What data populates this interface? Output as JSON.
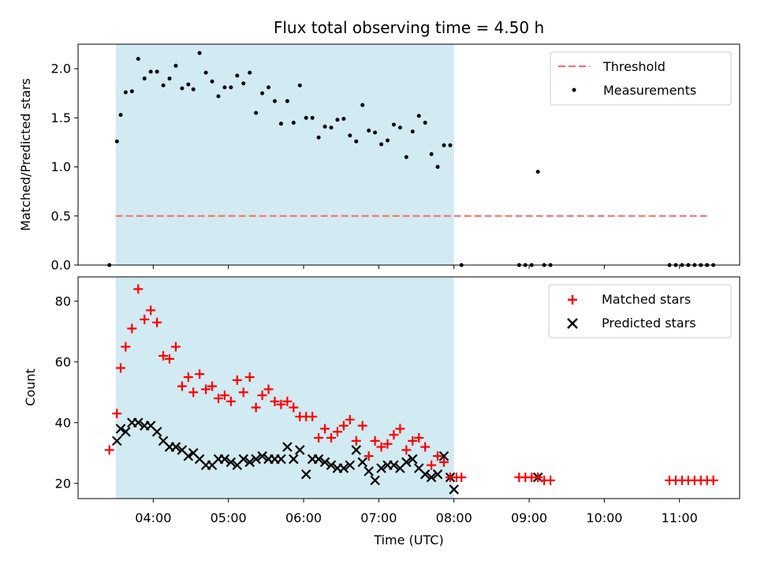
{
  "title": "Flux total observing time = 4.50 h",
  "top": {
    "ylabel": "Matched/Predicted stars",
    "ylim": [
      0,
      2.25
    ],
    "yticks": [
      "0.0",
      "0.5",
      "1.0",
      "1.5",
      "2.0"
    ],
    "legend": {
      "threshold": "Threshold",
      "measurements": "Measurements"
    },
    "threshold_value": 0.5,
    "threshold_range": [
      "03:30",
      "11:23"
    ]
  },
  "bottom": {
    "ylabel": "Count",
    "ylim": [
      15,
      88
    ],
    "yticks": [
      "20",
      "40",
      "60",
      "80"
    ],
    "legend": {
      "matched": "Matched stars",
      "predicted": "Predicted stars"
    }
  },
  "xaxis": {
    "xlabel": "Time (UTC)",
    "ticks": [
      "04:00",
      "05:00",
      "06:00",
      "07:00",
      "08:00",
      "09:00",
      "10:00",
      "11:00"
    ],
    "range": [
      "03:00",
      "11:48"
    ]
  },
  "shaded_span": [
    "03:30",
    "08:00"
  ],
  "colors": {
    "shade": "#add8e6",
    "threshold": "#ff6666",
    "matched": "#ff0000",
    "predicted": "#000000",
    "measurement": "#000000"
  },
  "chart_data": [
    {
      "type": "scatter",
      "title": "Flux total observing time = 4.50 h",
      "ylabel": "Matched/Predicted stars",
      "series": [
        {
          "name": "Measurements",
          "x": [
            "03:25",
            "03:31",
            "03:34",
            "03:38",
            "03:43",
            "03:48",
            "03:53",
            "03:58",
            "04:03",
            "04:08",
            "04:13",
            "04:18",
            "04:23",
            "04:28",
            "04:32",
            "04:37",
            "04:42",
            "04:47",
            "04:52",
            "04:57",
            "05:02",
            "05:07",
            "05:12",
            "05:17",
            "05:22",
            "05:27",
            "05:32",
            "05:37",
            "05:42",
            "05:47",
            "05:52",
            "05:57",
            "06:02",
            "06:07",
            "06:12",
            "06:17",
            "06:22",
            "06:27",
            "06:32",
            "06:37",
            "06:42",
            "06:47",
            "06:52",
            "06:57",
            "07:02",
            "07:07",
            "07:12",
            "07:17",
            "07:22",
            "07:27",
            "07:32",
            "07:37",
            "07:42",
            "07:47",
            "07:52",
            "07:57",
            "08:06",
            "08:52",
            "08:57",
            "09:02",
            "09:07",
            "09:12",
            "09:17",
            "10:52",
            "10:57",
            "11:02",
            "11:07",
            "11:12",
            "11:17",
            "11:22",
            "11:27"
          ],
          "y": [
            0.0,
            1.26,
            1.53,
            1.76,
            1.77,
            2.1,
            1.9,
            1.97,
            1.97,
            1.83,
            1.9,
            2.03,
            1.8,
            1.84,
            1.79,
            2.16,
            1.96,
            1.87,
            1.72,
            1.81,
            1.81,
            1.93,
            1.85,
            1.96,
            1.55,
            1.75,
            1.81,
            1.67,
            1.44,
            1.67,
            1.45,
            1.83,
            1.5,
            1.5,
            1.3,
            1.41,
            1.4,
            1.48,
            1.49,
            1.32,
            1.26,
            1.63,
            1.37,
            1.35,
            1.23,
            1.27,
            1.43,
            1.4,
            1.1,
            1.36,
            1.52,
            1.45,
            1.13,
            1.0,
            1.22,
            1.22,
            0.0,
            0.0,
            0.0,
            0.0,
            0.95,
            0.0,
            0.0,
            0.0,
            0.0,
            0.0,
            0.0,
            0.0,
            0.0,
            0.0,
            0.0
          ]
        },
        {
          "name": "Threshold",
          "x": [
            "03:30",
            "11:23"
          ],
          "y": [
            0.5,
            0.5
          ]
        }
      ]
    },
    {
      "type": "scatter",
      "xlabel": "Time (UTC)",
      "ylabel": "Count",
      "series": [
        {
          "name": "Matched stars",
          "x": [
            "03:25",
            "03:31",
            "03:34",
            "03:38",
            "03:43",
            "03:48",
            "03:53",
            "03:58",
            "04:03",
            "04:08",
            "04:13",
            "04:18",
            "04:23",
            "04:28",
            "04:32",
            "04:37",
            "04:42",
            "04:47",
            "04:52",
            "04:57",
            "05:02",
            "05:07",
            "05:12",
            "05:17",
            "05:22",
            "05:27",
            "05:32",
            "05:37",
            "05:42",
            "05:47",
            "05:52",
            "05:57",
            "06:02",
            "06:07",
            "06:12",
            "06:17",
            "06:22",
            "06:27",
            "06:32",
            "06:37",
            "06:42",
            "06:47",
            "06:52",
            "06:57",
            "07:02",
            "07:07",
            "07:12",
            "07:17",
            "07:22",
            "07:27",
            "07:32",
            "07:37",
            "07:42",
            "07:47",
            "07:52",
            "07:57",
            "08:02",
            "08:06",
            "08:52",
            "08:57",
            "09:02",
            "09:07",
            "09:12",
            "09:17",
            "10:52",
            "10:57",
            "11:02",
            "11:07",
            "11:12",
            "11:17",
            "11:22",
            "11:27"
          ],
          "y": [
            31,
            43,
            58,
            65,
            71,
            84,
            74,
            77,
            73,
            62,
            61,
            65,
            52,
            55,
            50,
            56,
            51,
            52,
            48,
            49,
            47,
            54,
            50,
            55,
            45,
            49,
            51,
            47,
            46,
            47,
            45,
            42,
            42,
            42,
            35,
            38,
            35,
            37,
            39,
            41,
            34,
            39,
            29,
            34,
            32,
            33,
            36,
            38,
            31,
            34,
            35,
            32,
            26,
            29,
            27,
            22,
            22,
            22,
            22,
            22,
            22,
            22,
            21,
            21,
            21,
            21,
            21,
            21,
            21,
            21,
            21,
            21
          ]
        },
        {
          "name": "Predicted stars",
          "x": [
            "03:31",
            "03:34",
            "03:38",
            "03:43",
            "03:48",
            "03:53",
            "03:58",
            "04:03",
            "04:08",
            "04:13",
            "04:18",
            "04:23",
            "04:28",
            "04:32",
            "04:37",
            "04:42",
            "04:47",
            "04:52",
            "04:57",
            "05:02",
            "05:07",
            "05:12",
            "05:17",
            "05:22",
            "05:27",
            "05:32",
            "05:37",
            "05:42",
            "05:47",
            "05:52",
            "05:57",
            "06:02",
            "06:07",
            "06:12",
            "06:17",
            "06:22",
            "06:27",
            "06:32",
            "06:37",
            "06:42",
            "06:47",
            "06:52",
            "06:57",
            "07:02",
            "07:07",
            "07:12",
            "07:17",
            "07:22",
            "07:27",
            "07:32",
            "07:37",
            "07:42",
            "07:47",
            "07:52",
            "07:57",
            "08:00",
            "09:07"
          ],
          "y": [
            34,
            38,
            37,
            40,
            40,
            39,
            39,
            37,
            34,
            32,
            32,
            31,
            29,
            30,
            28,
            26,
            26,
            28,
            28,
            27,
            26,
            28,
            27,
            28,
            29,
            28,
            28,
            28,
            32,
            28,
            31,
            23,
            28,
            28,
            27,
            26,
            25,
            25,
            26,
            31,
            27,
            24,
            21,
            25,
            26,
            26,
            25,
            27,
            28,
            25,
            23,
            22,
            23,
            29,
            22,
            18,
            22
          ]
        }
      ]
    }
  ]
}
